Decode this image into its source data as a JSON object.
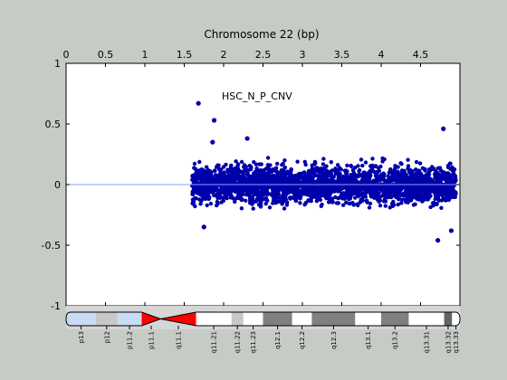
{
  "figure": {
    "background_color": "#c6cbc6",
    "axes_background_color": "#ffffff",
    "cytoband_panel_color": "#d6d6d6"
  },
  "chart_data": {
    "type": "scatter",
    "title": "Chromosome 22 (bp)",
    "annotation": "HSC_N_P_CNV",
    "x_axis": {
      "position": "top",
      "scale_factor_printed": "",
      "lim": [
        0,
        5.0
      ],
      "ticks": [
        0,
        0.5,
        1,
        1.5,
        2,
        2.5,
        3,
        3.5,
        4,
        4.5
      ],
      "tick_labels": [
        "0",
        "0.5",
        "1",
        "1.5",
        "2",
        "2.5",
        "3",
        "3.5",
        "4",
        "4.5"
      ]
    },
    "y_axis": {
      "lim": [
        -1,
        1
      ],
      "ticks": [
        -1,
        -0.5,
        0,
        0.5,
        1
      ],
      "tick_labels": [
        "-1",
        "-0.5",
        "0",
        "0.5",
        "1"
      ]
    },
    "grid": false,
    "baseline": {
      "y": 0,
      "color": "#8aa0ff"
    },
    "marker_color": "#0000aa",
    "data_x_range": [
      1.6,
      4.95
    ],
    "data_y_typical": [
      -0.2,
      0.25
    ],
    "outliers": [
      {
        "x": 1.68,
        "y": 0.67
      },
      {
        "x": 1.88,
        "y": 0.53
      },
      {
        "x": 4.79,
        "y": 0.46
      },
      {
        "x": 4.72,
        "y": -0.46
      },
      {
        "x": 1.75,
        "y": -0.35
      },
      {
        "x": 2.3,
        "y": 0.38
      },
      {
        "x": 1.86,
        "y": 0.35
      },
      {
        "x": 4.89,
        "y": -0.38
      }
    ],
    "cytobands": {
      "colors": {
        "gvar": "#c8dcf5",
        "acen": "#ff0000",
        "gneg": "#ffffff",
        "gpos25": "#c8c8c8",
        "gpos50": "#808080",
        "gpos75": "#646464"
      },
      "bands": [
        {
          "name": "p13",
          "start": 0.0,
          "end": 0.38,
          "stain": "gvar",
          "labeled": true
        },
        {
          "name": "p12",
          "start": 0.38,
          "end": 0.65,
          "stain": "gpos25",
          "labeled": true
        },
        {
          "name": "p11.2",
          "start": 0.65,
          "end": 0.96,
          "stain": "gvar",
          "labeled": true
        },
        {
          "name": "p11.1",
          "start": 0.96,
          "end": 1.2,
          "stain": "acen",
          "labeled": true
        },
        {
          "name": "q11.1",
          "start": 1.2,
          "end": 1.65,
          "stain": "acen",
          "labeled": true
        },
        {
          "name": "q11.21",
          "start": 1.65,
          "end": 2.1,
          "stain": "gneg",
          "labeled": true
        },
        {
          "name": "q11.22",
          "start": 2.1,
          "end": 2.25,
          "stain": "gpos25",
          "labeled": true
        },
        {
          "name": "q11.23",
          "start": 2.25,
          "end": 2.5,
          "stain": "gneg",
          "labeled": true
        },
        {
          "name": "q12.1",
          "start": 2.5,
          "end": 2.87,
          "stain": "gpos50",
          "labeled": true
        },
        {
          "name": "q12.2",
          "start": 2.87,
          "end": 3.12,
          "stain": "gneg",
          "labeled": true
        },
        {
          "name": "q12.3",
          "start": 3.12,
          "end": 3.67,
          "stain": "gpos50",
          "labeled": true
        },
        {
          "name": "q13.1",
          "start": 3.67,
          "end": 4.0,
          "stain": "gneg",
          "labeled": true
        },
        {
          "name": "q13.2",
          "start": 4.0,
          "end": 4.35,
          "stain": "gpos50",
          "labeled": true
        },
        {
          "name": "q13.31",
          "start": 4.35,
          "end": 4.8,
          "stain": "gneg",
          "labeled": true
        },
        {
          "name": "q13.32",
          "start": 4.8,
          "end": 4.9,
          "stain": "gpos75",
          "labeled": true
        },
        {
          "name": "q13.33",
          "start": 4.9,
          "end": 5.0,
          "stain": "gneg",
          "labeled": true
        }
      ]
    }
  }
}
